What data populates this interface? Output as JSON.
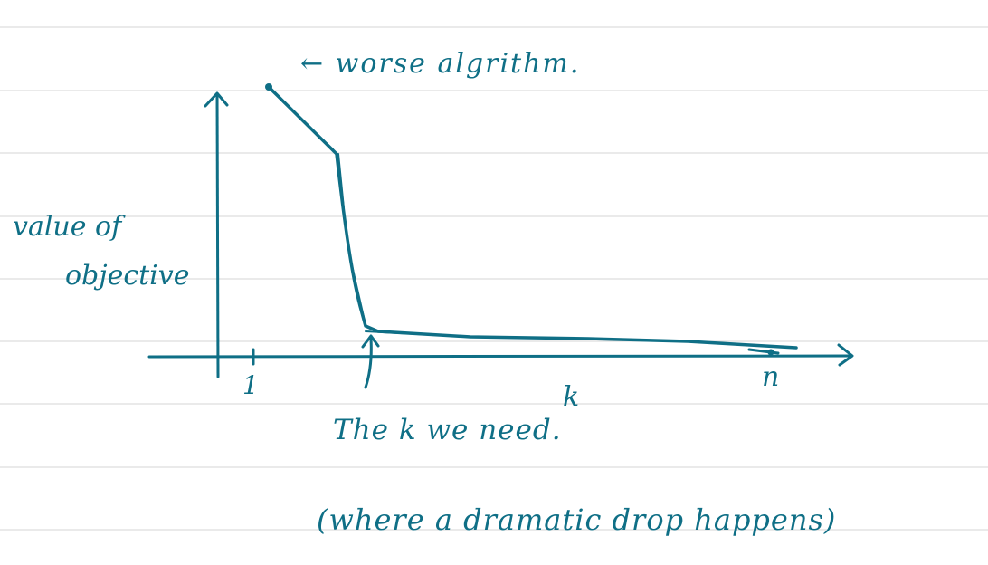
{
  "annotations": {
    "worse_algorithm": "← worse algrithm.",
    "ylabel_line1": "value of",
    "ylabel_line2": "objective",
    "tick_1": "1",
    "tick_n": "n",
    "xlabel": "k",
    "k_needed": "The k we need.",
    "drop_note": "(where a dramatic drop happens)"
  },
  "chart_data": {
    "type": "line",
    "title": "",
    "xlabel": "k",
    "ylabel": "value of objective",
    "x_ticks": [
      "1",
      "n"
    ],
    "series": [
      {
        "values_shape": "high at k=1, steep drop at the needed k, near-flat to k=n"
      }
    ]
  },
  "colors": {
    "ink": "#0f6f86",
    "ruled_line": "#d4d4d4",
    "background": "#ffffff"
  }
}
